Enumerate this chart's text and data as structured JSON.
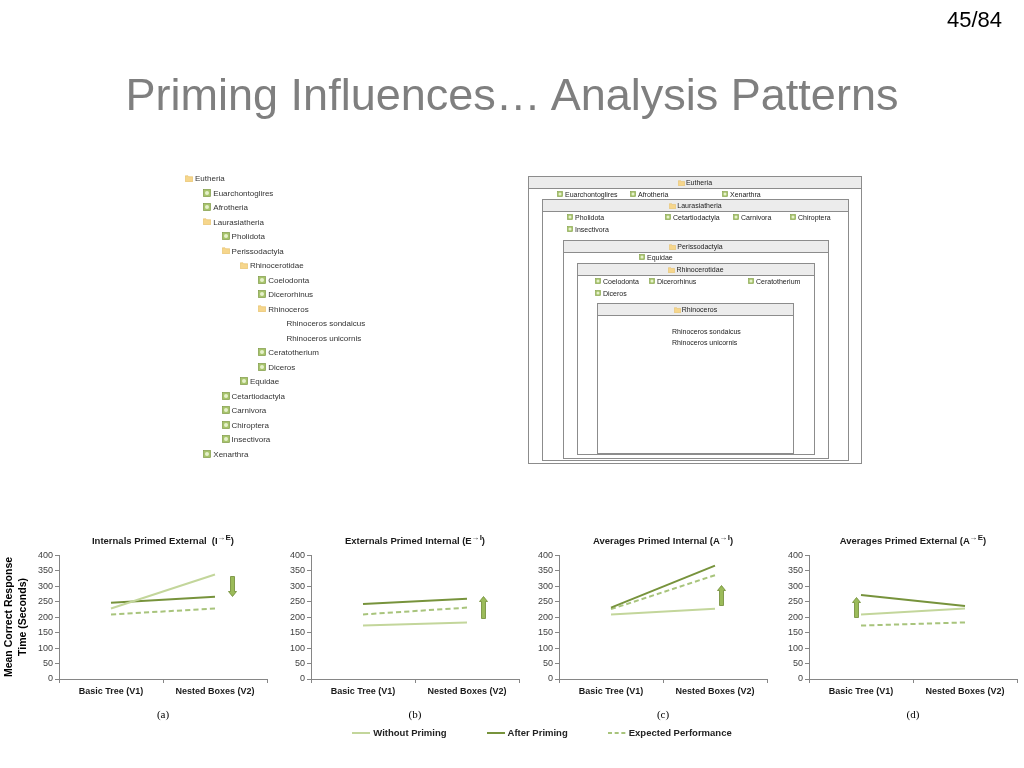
{
  "chart_data": [
    {
      "type": "other",
      "title": "Priming Influences… Analysis Patterns",
      "annotations": [
        "45/84"
      ]
    },
    {
      "type": "other",
      "annotations": [
        "Eutheria",
        "Euarchontoglires",
        "Afrotheria",
        "Laurasiatheria",
        "Pholidota",
        "Perissodactyla",
        "Rhinocerotidae",
        "Coelodonta",
        "Dicerorhinus",
        "Rhinoceros",
        "Rhinoceros sondaicus",
        "Rhinoceros unicornis",
        "Ceratotherium",
        "Diceros",
        "Equidae",
        "Cetartiodactyla",
        "Carnivora",
        "Chiroptera",
        "Insectivora",
        "Xenarthra"
      ]
    },
    {
      "type": "other",
      "annotations": [
        "Eutheria",
        "Euarchontoglires",
        "Afrotheria",
        "Xenarthra",
        "Laurasiatheria",
        "Pholidota",
        "Cetartiodactyla",
        "Carnivora",
        "Chiroptera",
        "Insectivora",
        "Perissodactyla",
        "Equidae",
        "Rhinocerotidae",
        "Coelodonta",
        "Dicerorhinus",
        "Ceratotherium",
        "Diceros",
        "Rhinoceros",
        "Rhinoceros sondaicus",
        "Rhinoceros unicornis"
      ]
    },
    {
      "type": "line",
      "title": "Internals Primed External  (I$^{→E}$)",
      "ylabel": "Mean Correct Response Time (Seconds)",
      "categories": [
        "Basic Tree (V1)",
        "Nested Boxes (V2)"
      ],
      "series": [
        {
          "name": "Without Priming",
          "color": "#c3d69b",
          "values": [
            228,
            338
          ]
        },
        {
          "name": "After Priming",
          "color": "#77933c",
          "values": [
            247,
            266
          ]
        },
        {
          "name": "Expected Performance",
          "color": "#a8c47c",
          "line_style": "dashed",
          "values": [
            209,
            228
          ]
        }
      ],
      "ylim": [
        0,
        400
      ],
      "yticks": [
        0,
        50,
        100,
        150,
        200,
        250,
        300,
        350,
        400
      ],
      "legend": "bottom",
      "annotations": [
        "(a)"
      ]
    },
    {
      "type": "line",
      "title": "Externals Primed Internal (E$^{→I}$)",
      "categories": [
        "Basic Tree (V1)",
        "Nested Boxes (V2)"
      ],
      "series": [
        {
          "color": "#c3d69b",
          "values": [
            173,
            183
          ]
        },
        {
          "color": "#77933c",
          "values": [
            243,
            260
          ]
        },
        {
          "color": "#a8c47c",
          "line_style": "dashed",
          "values": [
            209,
            231
          ]
        }
      ],
      "ylim": [
        0,
        400
      ],
      "yticks": [
        0,
        50,
        100,
        150,
        200,
        250,
        300,
        350,
        400
      ],
      "annotations": [
        "(b)"
      ]
    },
    {
      "type": "line",
      "title": "Averages Primed Internal (A$^{→I}$)",
      "categories": [
        "Basic Tree (V1)",
        "Nested Boxes (V2)"
      ],
      "series": [
        {
          "color": "#c3d69b",
          "values": [
            209,
            227
          ]
        },
        {
          "color": "#77933c",
          "values": [
            231,
            367
          ]
        },
        {
          "color": "#a8c47c",
          "line_style": "dashed",
          "values": [
            226,
            336
          ]
        }
      ],
      "ylim": [
        0,
        400
      ],
      "yticks": [
        0,
        50,
        100,
        150,
        200,
        250,
        300,
        350,
        400
      ],
      "annotations": [
        "(c)"
      ]
    },
    {
      "type": "line",
      "title": "Averages Primed External (A$^{→E}$)",
      "categories": [
        "Basic Tree (V1)",
        "Nested Boxes (V2)"
      ],
      "series": [
        {
          "color": "#c3d69b",
          "values": [
            209,
            228
          ]
        },
        {
          "color": "#77933c",
          "values": [
            272,
            236
          ]
        },
        {
          "color": "#a8c47c",
          "line_style": "dashed",
          "values": [
            173,
            183
          ]
        }
      ],
      "ylim": [
        0,
        400
      ],
      "yticks": [
        0,
        50,
        100,
        150,
        200,
        250,
        300,
        350,
        400
      ],
      "annotations": [
        "(d)"
      ]
    }
  ]
}
